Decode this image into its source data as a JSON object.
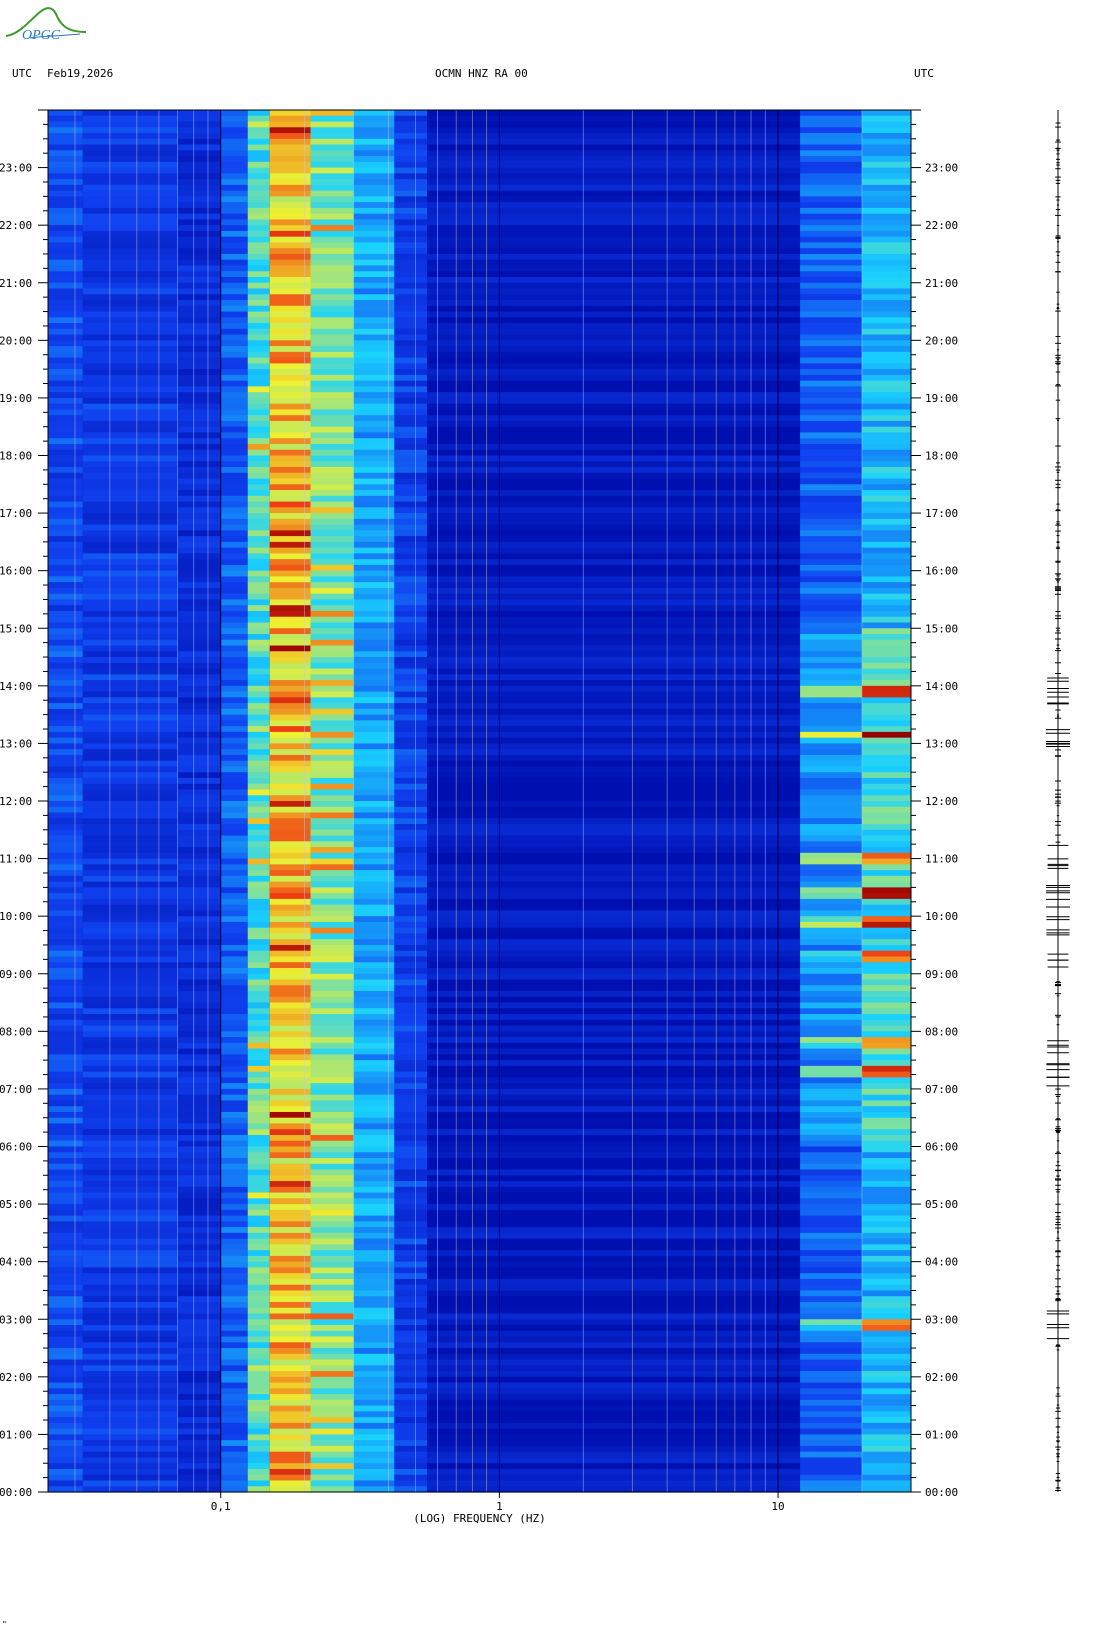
{
  "header": {
    "left_utc": "UTC",
    "date": "Feb19,2026",
    "station": "OCMN HNZ RA 00",
    "right_utc": "UTC"
  },
  "logo_text": "OPGC",
  "corner_mark": "\"",
  "colors": {
    "background_blue": "#0a1fd6",
    "dark_blue": "#0010b0",
    "cyan": "#19d2ff",
    "yellow": "#f0f030",
    "red": "#c80000",
    "logo_green": "#3a9a2a",
    "logo_blue": "#2a7ab8"
  },
  "chart_data": {
    "type": "heatmap",
    "xlabel": "(LOG) FREQUENCY (HZ)",
    "x_scale": "log",
    "xlim": [
      0.024,
      30
    ],
    "x_ticks": [
      {
        "value": 0.1,
        "label": "0,1"
      },
      {
        "value": 1,
        "label": "1"
      },
      {
        "value": 10,
        "label": "10"
      }
    ],
    "ylim": [
      0,
      24
    ],
    "y_ticks": [
      "00:00",
      "01:00",
      "02:00",
      "03:00",
      "04:00",
      "05:00",
      "06:00",
      "07:00",
      "08:00",
      "09:00",
      "10:00",
      "11:00",
      "12:00",
      "13:00",
      "14:00",
      "15:00",
      "16:00",
      "17:00",
      "18:00",
      "19:00",
      "20:00",
      "21:00",
      "22:00",
      "23:00"
    ],
    "bands": [
      {
        "from_hz": 0.024,
        "to_hz": 0.032,
        "level": 0.25
      },
      {
        "from_hz": 0.032,
        "to_hz": 0.07,
        "level": 0.2
      },
      {
        "from_hz": 0.07,
        "to_hz": 0.1,
        "level": 0.15
      },
      {
        "from_hz": 0.1,
        "to_hz": 0.125,
        "level": 0.3
      },
      {
        "from_hz": 0.125,
        "to_hz": 0.15,
        "level": 0.55
      },
      {
        "from_hz": 0.15,
        "to_hz": 0.21,
        "level": 0.75
      },
      {
        "from_hz": 0.21,
        "to_hz": 0.3,
        "level": 0.6
      },
      {
        "from_hz": 0.3,
        "to_hz": 0.42,
        "level": 0.42
      },
      {
        "from_hz": 0.42,
        "to_hz": 0.55,
        "level": 0.22
      },
      {
        "from_hz": 0.55,
        "to_hz": 12,
        "level": 0.05
      },
      {
        "from_hz": 12,
        "to_hz": 20,
        "level": 0.3
      },
      {
        "from_hz": 20,
        "to_hz": 30,
        "level": 0.45
      }
    ],
    "events": [
      {
        "hour": 13.15,
        "level": 1.0
      },
      {
        "hour": 10.4,
        "level": 1.0
      },
      {
        "hour": 9.9,
        "level": 0.95
      },
      {
        "hour": 7.3,
        "level": 0.95
      },
      {
        "hour": 7.8,
        "level": 0.85
      },
      {
        "hour": 2.9,
        "level": 0.9
      },
      {
        "hour": 13.9,
        "level": 0.85
      },
      {
        "hour": 11.0,
        "level": 0.8
      },
      {
        "hour": 9.3,
        "level": 0.8
      }
    ]
  }
}
